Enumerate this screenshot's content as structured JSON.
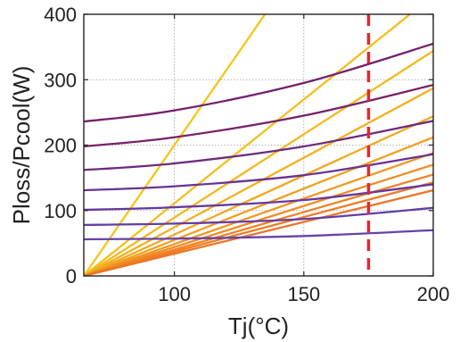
{
  "chart_data": {
    "type": "line",
    "title": "",
    "xlabel": "Tj(°C)",
    "ylabel": "Ploss/Pcool(W)",
    "xlim": [
      65,
      200
    ],
    "ylim": [
      0,
      400
    ],
    "xticks": [
      100,
      150,
      200
    ],
    "yticks": [
      0,
      100,
      200,
      300,
      400
    ],
    "grid": true,
    "legend": "none",
    "line_color_scale": [
      "#7a1f6b",
      "#6a3da0",
      "#f2b21e",
      "#f07a1e",
      "#f5c518"
    ],
    "series": [
      {
        "group": "ploss",
        "color": "#74206c",
        "x": [
          65,
          100,
          150,
          200
        ],
        "y": [
          236,
          253,
          295,
          355
        ]
      },
      {
        "group": "ploss",
        "color": "#772268",
        "x": [
          65,
          100,
          150,
          200
        ],
        "y": [
          198,
          212,
          245,
          292
        ]
      },
      {
        "group": "ploss",
        "color": "#6e2a7e",
        "x": [
          65,
          100,
          150,
          200
        ],
        "y": [
          162,
          172,
          198,
          237
        ]
      },
      {
        "group": "ploss",
        "color": "#6a3191",
        "x": [
          65,
          100,
          150,
          200
        ],
        "y": [
          131,
          137,
          154,
          186
        ]
      },
      {
        "group": "ploss",
        "color": "#6637a0",
        "x": [
          65,
          100,
          150,
          200
        ],
        "y": [
          101,
          105,
          116,
          140
        ]
      },
      {
        "group": "ploss",
        "color": "#643ca8",
        "x": [
          65,
          100,
          150,
          200
        ],
        "y": [
          78,
          80,
          87,
          104
        ]
      },
      {
        "group": "ploss",
        "color": "#6543aa",
        "x": [
          65,
          100,
          150,
          200
        ],
        "y": [
          56,
          57,
          61,
          70
        ]
      },
      {
        "group": "pcool",
        "color": "#f5c518",
        "x": [
          65,
          135
        ],
        "y": [
          0,
          400
        ]
      },
      {
        "group": "pcool",
        "color": "#f4bf1b",
        "x": [
          65,
          191
        ],
        "y": [
          0,
          400
        ]
      },
      {
        "group": "pcool",
        "color": "#f3b91d",
        "x": [
          65,
          200
        ],
        "y": [
          0,
          344
        ]
      },
      {
        "group": "pcool",
        "color": "#f2b01f",
        "x": [
          65,
          200
        ],
        "y": [
          0,
          287
        ]
      },
      {
        "group": "pcool",
        "color": "#f1a820",
        "x": [
          65,
          200
        ],
        "y": [
          0,
          244
        ]
      },
      {
        "group": "pcool",
        "color": "#f0a021",
        "x": [
          65,
          200
        ],
        "y": [
          0,
          212
        ]
      },
      {
        "group": "pcool",
        "color": "#f09622",
        "x": [
          65,
          200
        ],
        "y": [
          0,
          188
        ]
      },
      {
        "group": "pcool",
        "color": "#ef8c23",
        "x": [
          65,
          200
        ],
        "y": [
          0,
          170
        ]
      },
      {
        "group": "pcool",
        "color": "#ee8424",
        "x": [
          65,
          200
        ],
        "y": [
          0,
          155
        ]
      },
      {
        "group": "pcool",
        "color": "#ed7c25",
        "x": [
          65,
          200
        ],
        "y": [
          0,
          143
        ]
      },
      {
        "group": "pcool",
        "color": "#ec7526",
        "x": [
          65,
          200
        ],
        "y": [
          0,
          131
        ]
      }
    ],
    "vline": {
      "x": 175,
      "color": "#e8262d",
      "style": "dashed"
    }
  }
}
